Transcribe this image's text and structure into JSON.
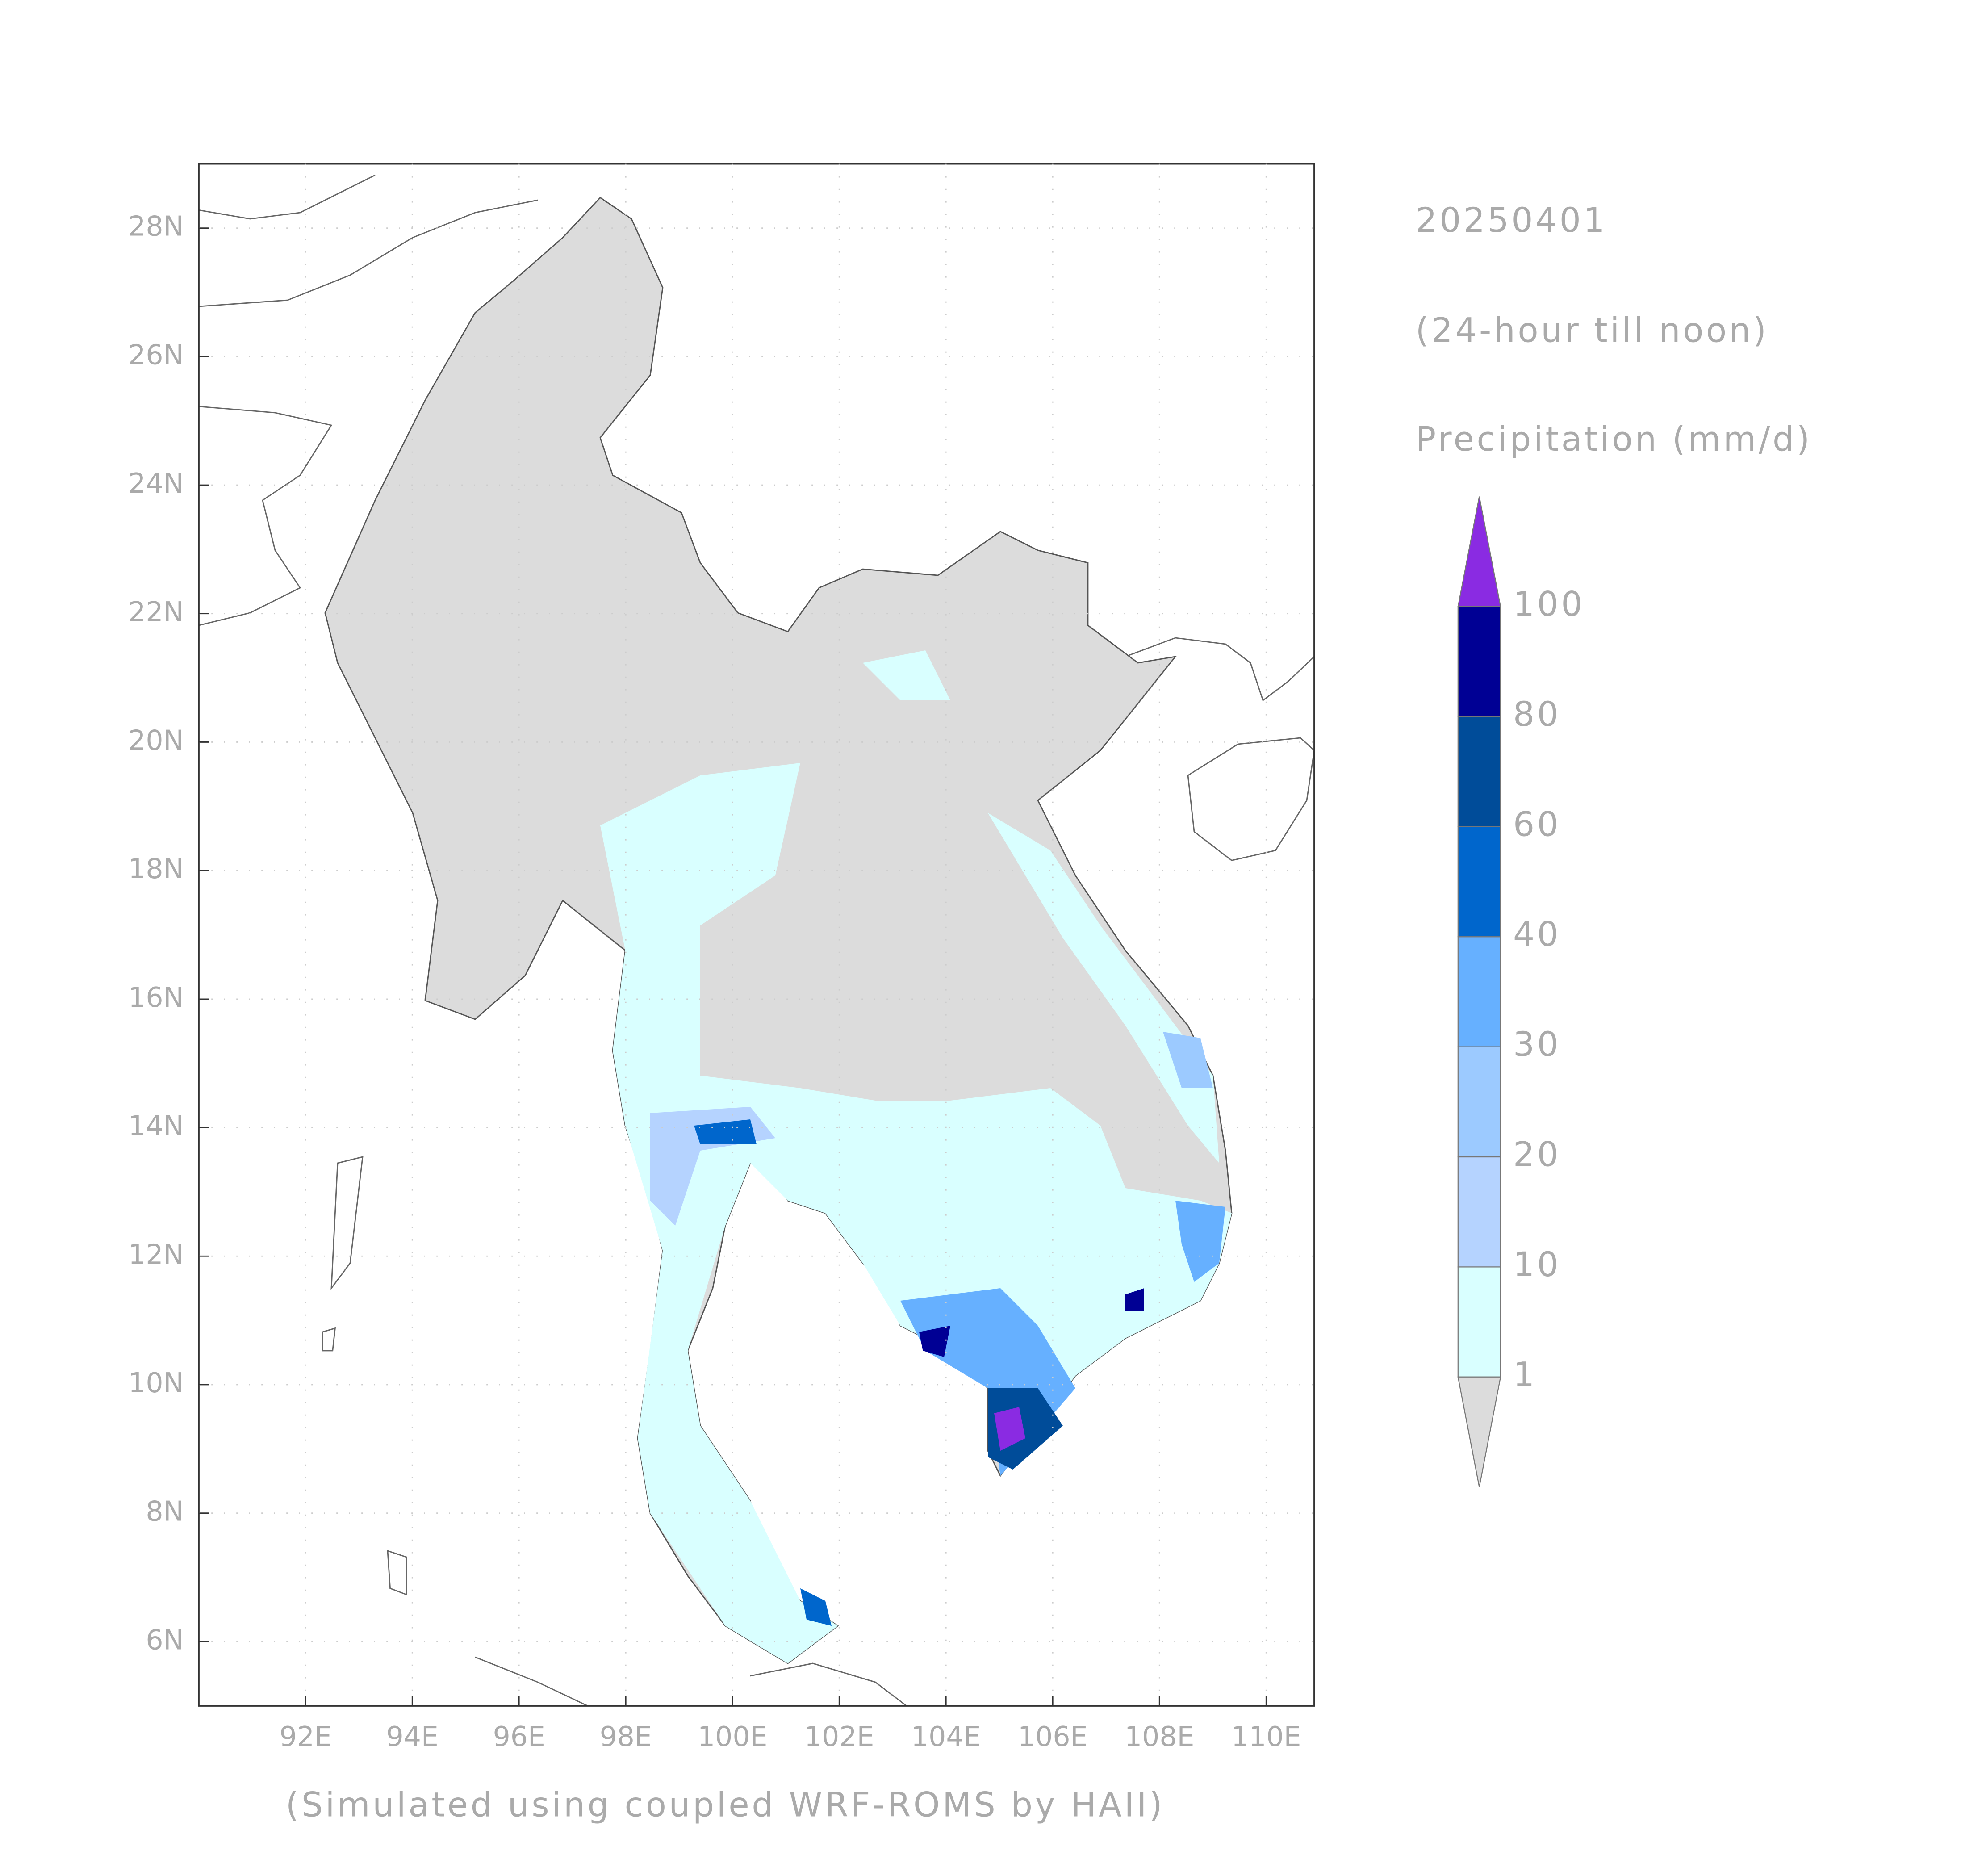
{
  "chart_data": {
    "type": "map",
    "title": "20250401",
    "subtitle": "(24-hour till noon)",
    "variable": "Precipitation (mm/d)",
    "caption": "(Simulated using coupled WRF-ROMS by HAII)",
    "xlim": [
      90,
      110.9
    ],
    "ylim": [
      5,
      29
    ],
    "xticks": [
      {
        "value": 92,
        "label": "92E"
      },
      {
        "value": 94,
        "label": "94E"
      },
      {
        "value": 96,
        "label": "96E"
      },
      {
        "value": 98,
        "label": "98E"
      },
      {
        "value": 100,
        "label": "100E"
      },
      {
        "value": 102,
        "label": "102E"
      },
      {
        "value": 104,
        "label": "104E"
      },
      {
        "value": 106,
        "label": "106E"
      },
      {
        "value": 108,
        "label": "108E"
      },
      {
        "value": 110,
        "label": "110E"
      }
    ],
    "yticks": [
      {
        "value": 6,
        "label": "6N"
      },
      {
        "value": 8,
        "label": "8N"
      },
      {
        "value": 10,
        "label": "10N"
      },
      {
        "value": 12,
        "label": "12N"
      },
      {
        "value": 14,
        "label": "14N"
      },
      {
        "value": 16,
        "label": "16N"
      },
      {
        "value": 18,
        "label": "18N"
      },
      {
        "value": 20,
        "label": "20N"
      },
      {
        "value": 22,
        "label": "22N"
      },
      {
        "value": 24,
        "label": "24N"
      },
      {
        "value": 26,
        "label": "26N"
      },
      {
        "value": 28,
        "label": "28N"
      }
    ],
    "grid": true,
    "colorbar": {
      "levels": [
        1,
        10,
        20,
        30,
        40,
        60,
        80,
        100
      ],
      "colors": [
        "#d9ffff",
        "#b5d3ff",
        "#9ccaff",
        "#66b0ff",
        "#0066cc",
        "#004c99",
        "#000094"
      ],
      "under_color": "#dcdcdc",
      "over_color": "#8a2be2"
    }
  }
}
